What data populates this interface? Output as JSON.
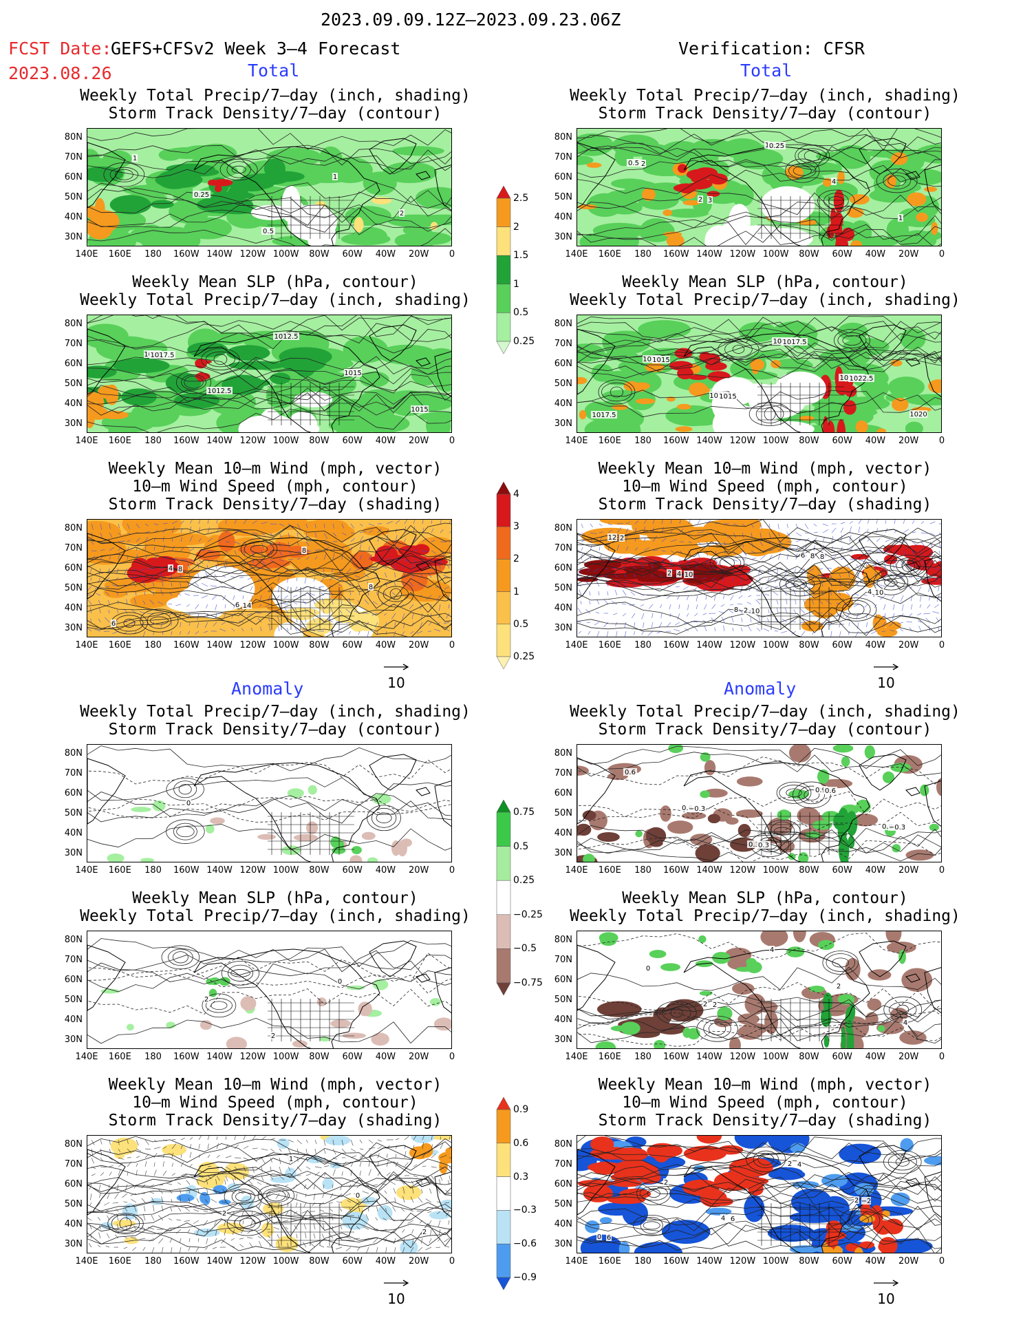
{
  "header": {
    "date_range": "2023.09.09.12Z–2023.09.23.06Z",
    "fcst_label": "FCST Date:",
    "fcst_model": "GEFS+CFSv2 Week 3–4 Forecast",
    "fcst_date": "2023.08.26",
    "verification": "Verification: CFSR"
  },
  "sections": {
    "total": "Total",
    "anomaly": "Anomaly"
  },
  "axes": {
    "lat_ticks": [
      "80N",
      "70N",
      "60N",
      "50N",
      "40N",
      "30N"
    ],
    "lon_ticks": [
      "140E",
      "160E",
      "180",
      "160W",
      "140W",
      "120W",
      "100W",
      "80W",
      "60W",
      "40W",
      "20W",
      "0"
    ]
  },
  "panel_titles": {
    "precip_storm": [
      "Weekly Total Precip/7–day (inch, shading)",
      "Storm Track Density/7–day (contour)"
    ],
    "slp_precip": [
      "Weekly Mean SLP (hPa, contour)",
      "Weekly Total Precip/7–day (inch, shading)"
    ],
    "wind": [
      "Weekly Mean 10–m Wind (mph, vector)",
      "10–m Wind Speed (mph, contour)",
      "Storm Track Density/7–day (shading)"
    ]
  },
  "vector_ref": "10",
  "colorbars": {
    "total_precip": {
      "labels": [
        "2.5",
        "2",
        "1.5",
        "1",
        "0.5",
        "0.25"
      ],
      "colors": [
        "#d7191c",
        "#f59a1e",
        "#fde17a",
        "#22a338",
        "#58d05a",
        "#a5efa0",
        "#d4f8cf"
      ]
    },
    "total_storm": {
      "labels": [
        "4",
        "3",
        "2",
        "1",
        "0.5",
        "0.25"
      ],
      "colors": [
        "#8c0d0d",
        "#d7191c",
        "#f06a1e",
        "#f59a1e",
        "#fbc04a",
        "#fde17a",
        "#fdf0b0"
      ]
    },
    "anom_precip": {
      "labels": [
        "0.75",
        "0.5",
        "0.25",
        "−0.25",
        "−0.5",
        "−0.75"
      ],
      "colors": [
        "#0f8f24",
        "#3cc94a",
        "#a6ec9e",
        "#ffffff",
        "#dcbdb5",
        "#a87a6f",
        "#6e4038"
      ]
    },
    "anom_storm": {
      "labels": [
        "0.9",
        "0.6",
        "0.3",
        "−0.3",
        "−0.6",
        "−0.9"
      ],
      "colors": [
        "#e8321c",
        "#f59a1e",
        "#fde17a",
        "#ffffff",
        "#b9e2f5",
        "#4e9cf0",
        "#1654d8"
      ]
    }
  },
  "contour_labels": {
    "t_l_1": [
      "1",
      "0.25",
      "0.5",
      "1",
      "2"
    ],
    "t_r_1": [
      "0.5",
      "2",
      "1",
      "4",
      "1",
      "2",
      "3",
      "0.25"
    ],
    "t_l_2": [
      "1015",
      "1012.5",
      "1012.5",
      "1015",
      "1015",
      "1017.5"
    ],
    "t_r_2": [
      "1010",
      "1015",
      "1007.5",
      "1017.5",
      "1020",
      "1015",
      "1015",
      "1017.5",
      "1022.5",
      "1017.5"
    ],
    "t_l_3": [
      "4",
      "6",
      "8",
      "8",
      "6",
      "8",
      "14"
    ],
    "t_r_3": [
      "2",
      "8",
      "6",
      "4",
      "12",
      "4",
      "2",
      "8",
      "10",
      "2",
      "10",
      "10",
      "8"
    ],
    "a_l_1": [
      "0"
    ],
    "a_r_1": [
      "0.6",
      "0.3",
      "0.9",
      "0.9",
      "0.6",
      "−0.3",
      "0.3",
      "0.6",
      "−0.3"
    ],
    "a_l_2": [
      "2",
      "2",
      "0"
    ],
    "a_r_2": [
      "2",
      "4",
      "2",
      "4",
      "0",
      "2"
    ],
    "a_l_3": [
      "2",
      "1",
      "0",
      "2"
    ],
    "a_r_3": [
      "4",
      "2",
      "2",
      "0",
      "2",
      "6",
      "4",
      "−2",
      "6"
    ]
  }
}
